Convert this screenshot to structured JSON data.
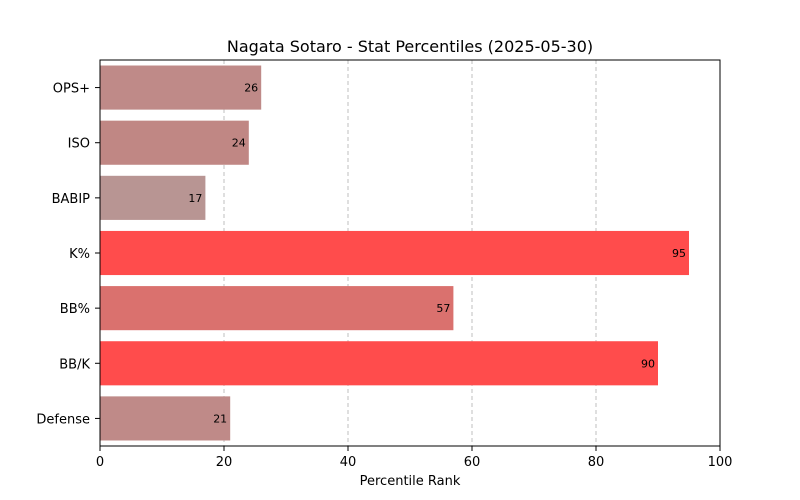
{
  "chart_data": {
    "type": "bar",
    "orientation": "horizontal",
    "title": "Nagata Sotaro - Stat Percentiles (2025-05-30)",
    "xlabel": "Percentile Rank",
    "ylabel": "",
    "xlim": [
      0,
      100
    ],
    "xticks": [
      "0",
      "20",
      "40",
      "60",
      "80",
      "100"
    ],
    "grid": "vertical-dashed",
    "categories": [
      "OPS+",
      "ISO",
      "BABIP",
      "K%",
      "BB%",
      "BB/K",
      "Defense"
    ],
    "values": [
      26,
      24,
      17,
      95,
      57,
      90,
      21
    ],
    "bar_colors": [
      "#bf8a88",
      "#c08784",
      "#b89593",
      "#ff4c4c",
      "#da716e",
      "#ff4c4c",
      "#bf8a88"
    ]
  }
}
